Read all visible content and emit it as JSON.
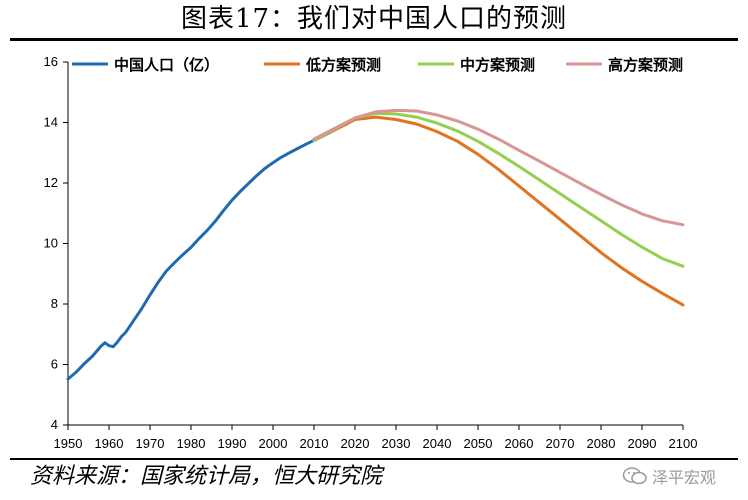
{
  "header": {
    "title": "图表17：我们对中国人口的预测"
  },
  "footer": {
    "source": "资料来源：国家统计局，恒大研究院",
    "watermark": "泽平宏观"
  },
  "chart_data": {
    "type": "line",
    "title": "图表17：我们对中国人口的预测",
    "xlabel": "",
    "ylabel": "",
    "xlim": [
      1950,
      2100
    ],
    "ylim": [
      4,
      16
    ],
    "x_ticks": [
      1950,
      1960,
      1970,
      1980,
      1990,
      2000,
      2010,
      2020,
      2030,
      2040,
      2050,
      2060,
      2070,
      2080,
      2090,
      2100
    ],
    "y_ticks": [
      4,
      6,
      8,
      10,
      12,
      14,
      16
    ],
    "grid": false,
    "legend_position": "top",
    "series": [
      {
        "name": "中国人口（亿）",
        "color": "#1f6bb0",
        "x": [
          1950,
          1952,
          1954,
          1956,
          1958,
          1959,
          1960,
          1961,
          1962,
          1963,
          1964,
          1965,
          1966,
          1968,
          1970,
          1972,
          1974,
          1976,
          1978,
          1980,
          1982,
          1984,
          1986,
          1988,
          1990,
          1992,
          1994,
          1996,
          1998,
          2000,
          2002,
          2004,
          2006,
          2008,
          2010,
          2012,
          2014,
          2016,
          2018
        ],
        "y": [
          5.52,
          5.75,
          6.03,
          6.28,
          6.6,
          6.72,
          6.62,
          6.59,
          6.73,
          6.92,
          7.05,
          7.25,
          7.45,
          7.85,
          8.3,
          8.72,
          9.09,
          9.37,
          9.63,
          9.87,
          10.17,
          10.44,
          10.75,
          11.1,
          11.43,
          11.72,
          11.98,
          12.24,
          12.48,
          12.67,
          12.85,
          13.0,
          13.14,
          13.28,
          13.41,
          13.54,
          13.68,
          13.83,
          13.95
        ]
      },
      {
        "name": "低方案预测",
        "color": "#e0731f",
        "x": [
          2010,
          2015,
          2020,
          2025,
          2030,
          2035,
          2040,
          2045,
          2050,
          2055,
          2060,
          2065,
          2070,
          2075,
          2080,
          2085,
          2090,
          2095,
          2100
        ],
        "y": [
          13.4,
          13.75,
          14.1,
          14.18,
          14.1,
          13.95,
          13.7,
          13.38,
          12.95,
          12.45,
          11.9,
          11.35,
          10.8,
          10.25,
          9.7,
          9.2,
          8.75,
          8.35,
          7.97
        ]
      },
      {
        "name": "中方案预测",
        "color": "#92d050",
        "x": [
          2010,
          2015,
          2020,
          2025,
          2030,
          2035,
          2040,
          2045,
          2050,
          2055,
          2060,
          2065,
          2070,
          2075,
          2080,
          2085,
          2090,
          2095,
          2100
        ],
        "y": [
          13.4,
          13.78,
          14.15,
          14.3,
          14.28,
          14.18,
          13.98,
          13.72,
          13.38,
          12.98,
          12.55,
          12.1,
          11.65,
          11.2,
          10.75,
          10.3,
          9.88,
          9.5,
          9.25
        ]
      },
      {
        "name": "高方案预测",
        "color": "#d99594",
        "x": [
          2010,
          2015,
          2020,
          2025,
          2030,
          2035,
          2040,
          2045,
          2050,
          2055,
          2060,
          2065,
          2070,
          2075,
          2080,
          2085,
          2090,
          2095,
          2100
        ],
        "y": [
          13.45,
          13.8,
          14.15,
          14.35,
          14.4,
          14.38,
          14.25,
          14.05,
          13.78,
          13.45,
          13.08,
          12.72,
          12.35,
          11.98,
          11.62,
          11.28,
          10.98,
          10.75,
          10.62
        ]
      }
    ]
  }
}
